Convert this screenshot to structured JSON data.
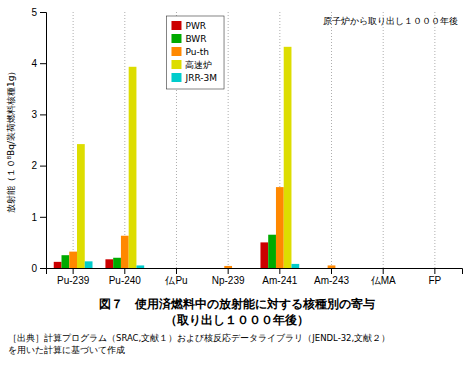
{
  "chart_data": {
    "type": "bar",
    "title": "図７　使用済燃料中の放射能に対する核種別の寄与",
    "subtitle": "（取り出し１０００年後）",
    "y_label": "放射能（１０⁸Bq/装荷燃料核種1g）",
    "annotations": [
      "原子炉から取り出し１０００年後",
      "［出典］計算プログラム（SRAC,文献１）および核反応データライブラリ（JENDL-32,文献２）\nを用いた計算に基づいて作成"
    ],
    "categories": [
      "Pu-239",
      "Pu-240",
      "仏Pu",
      "Np-239",
      "Am-241",
      "Am-243",
      "仏MA",
      "FP"
    ],
    "series": [
      {
        "name": "PWR",
        "color": "#cc0000",
        "values": [
          0.12,
          0.17,
          0.0,
          0.0,
          0.5,
          0.0,
          0.0,
          0.0
        ]
      },
      {
        "name": "BWR",
        "color": "#00aa00",
        "values": [
          0.25,
          0.2,
          0.0,
          0.0,
          0.65,
          0.0,
          0.0,
          0.0
        ]
      },
      {
        "name": "Pu-th",
        "color": "#ff8800",
        "values": [
          0.32,
          0.63,
          0.0,
          0.04,
          1.58,
          0.05,
          0.0,
          0.0
        ]
      },
      {
        "name": "高速炉",
        "color": "#dddd00",
        "values": [
          2.42,
          3.93,
          0.0,
          0.0,
          4.32,
          0.0,
          0.0,
          0.0
        ]
      },
      {
        "name": "JRR-3M",
        "color": "#00cccc",
        "values": [
          0.13,
          0.05,
          0.0,
          0.0,
          0.08,
          0.0,
          0.0,
          0.0
        ]
      }
    ],
    "ylim": [
      0,
      5
    ],
    "yticks": [
      0,
      1,
      2,
      3,
      4,
      5
    ],
    "grid": true,
    "legend": "upper left"
  }
}
